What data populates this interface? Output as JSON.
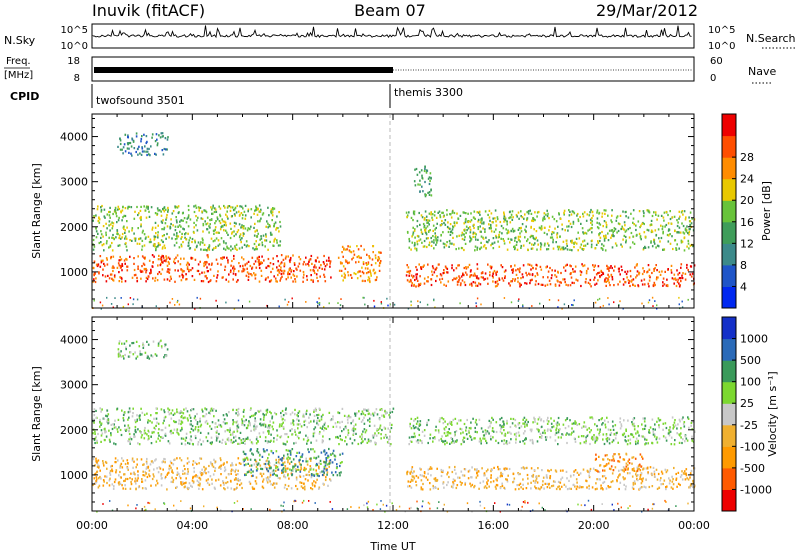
{
  "header": {
    "station": "Inuvik (fitACF)",
    "beam": "Beam 07",
    "date": "29/Mar/2012"
  },
  "status_panels": {
    "nsky": {
      "label": "N.Sky",
      "ticks": [
        "10^5",
        "10^0"
      ]
    },
    "nsearch": {
      "label": "N.Search",
      "ticks": [
        "10^5",
        "10^0"
      ]
    },
    "freq": {
      "label_line1": "Freq.",
      "label_line2": "[MHz]",
      "ticks": [
        "18",
        "8"
      ]
    },
    "nave": {
      "label": "Nave",
      "ticks": [
        "60",
        "0"
      ]
    },
    "cpid": {
      "label": "CPID",
      "programs": [
        {
          "name": "twofsound 3501",
          "start_hour": 0
        },
        {
          "name": "themis 3300",
          "start_hour": 12
        }
      ]
    },
    "freq_level_mhz": 10,
    "freq_end_hour": 12
  },
  "chart_data": [
    {
      "type": "heatmap",
      "title": "",
      "quantity": "Power",
      "ylabel": "Slant Range [km]",
      "xlabel": "",
      "xlim_hours": [
        0,
        24
      ],
      "ylim_km": [
        200,
        4500
      ],
      "yticks": [
        1000,
        2000,
        3000,
        4000
      ],
      "colorbar": {
        "label": "Power [dB]",
        "ticks": [
          "4",
          "8",
          "12",
          "16",
          "20",
          "24",
          "28"
        ],
        "colors": [
          "#0028f0",
          "#1f55c8",
          "#3c8a8a",
          "#3f9d5a",
          "#68c33a",
          "#e8c800",
          "#ff8c00",
          "#ff4e00",
          "#ee0000"
        ]
      },
      "scatter_bands": [
        {
          "x": [
            0,
            9.5
          ],
          "y": [
            800,
            1400
          ],
          "value": "28"
        },
        {
          "x": [
            0,
            7.5
          ],
          "y": [
            1500,
            2500
          ],
          "value": "16"
        },
        {
          "x": [
            9.8,
            11.5
          ],
          "y": [
            800,
            1600
          ],
          "value": "24"
        },
        {
          "x": [
            12.5,
            24
          ],
          "y": [
            700,
            1200
          ],
          "value": "28"
        },
        {
          "x": [
            12.5,
            24
          ],
          "y": [
            1500,
            2400
          ],
          "value": "16"
        },
        {
          "x": [
            1,
            3
          ],
          "y": [
            3600,
            4100
          ],
          "value": "8"
        },
        {
          "x": [
            12.8,
            13.5
          ],
          "y": [
            2700,
            3400
          ],
          "value": "12"
        }
      ]
    },
    {
      "type": "heatmap",
      "title": "",
      "quantity": "Velocity",
      "ylabel": "Slant Range [km]",
      "xlabel": "Time UT",
      "xlim_hours": [
        0,
        24
      ],
      "ylim_km": [
        200,
        4500
      ],
      "yticks": [
        1000,
        2000,
        3000,
        4000
      ],
      "xticks": [
        "00:00",
        "04:00",
        "08:00",
        "12:00",
        "16:00",
        "20:00",
        "00:00"
      ],
      "colorbar": {
        "label": "Velocity [m s⁻¹]",
        "ticks": [
          "-1000",
          "-500",
          "-100",
          "-25",
          "25",
          "100",
          "500",
          "1000"
        ],
        "colors": [
          "#ee0000",
          "#ff5a00",
          "#ff9a00",
          "#f0b030",
          "#c8c8c8",
          "#7cd830",
          "#3a9a5a",
          "#2a6ab8",
          "#1430c8"
        ]
      },
      "scatter_bands": [
        {
          "x": [
            0,
            9.5
          ],
          "y": [
            700,
            1400
          ],
          "value": "-100"
        },
        {
          "x": [
            0,
            12
          ],
          "y": [
            1700,
            2500
          ],
          "value": "25"
        },
        {
          "x": [
            6,
            10
          ],
          "y": [
            1000,
            1600
          ],
          "value": "100"
        },
        {
          "x": [
            12.5,
            24
          ],
          "y": [
            700,
            1200
          ],
          "value": "-100"
        },
        {
          "x": [
            12.5,
            24
          ],
          "y": [
            1700,
            2300
          ],
          "value": "25"
        },
        {
          "x": [
            20,
            22
          ],
          "y": [
            1100,
            1500
          ],
          "value": "-500"
        },
        {
          "x": [
            1,
            3
          ],
          "y": [
            3600,
            4000
          ],
          "value": "25"
        }
      ]
    }
  ]
}
